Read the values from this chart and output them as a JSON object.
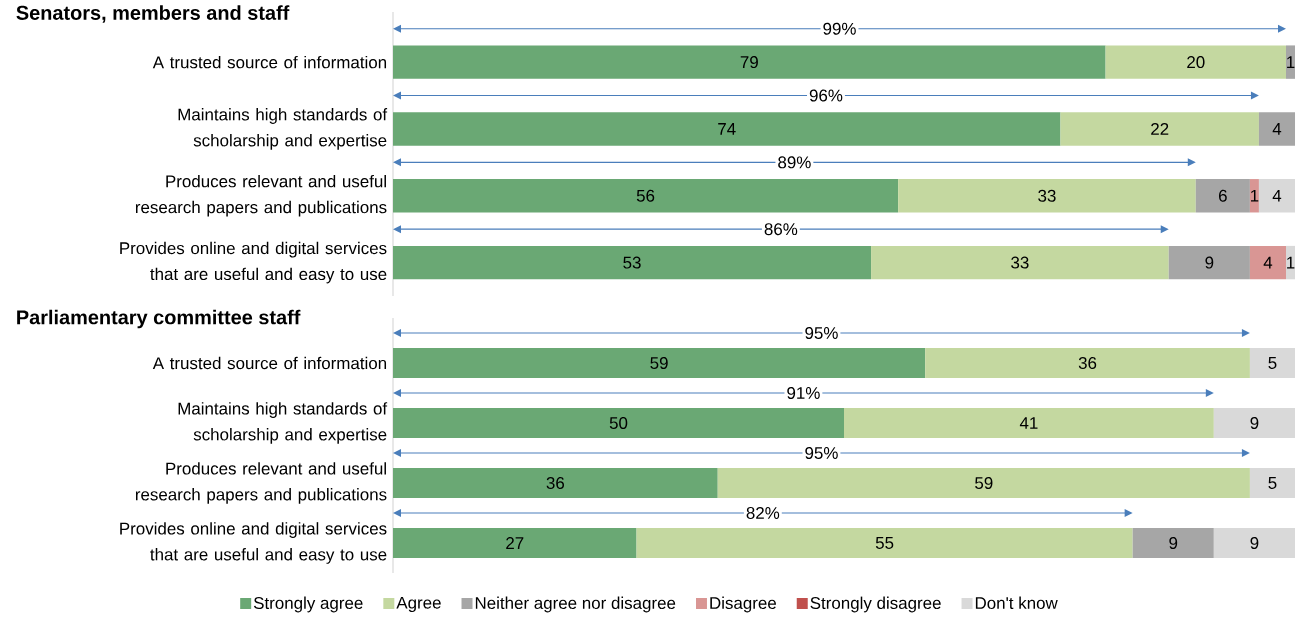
{
  "chart_data": [
    {
      "type": "bar",
      "orientation": "horizontal",
      "stacked": true,
      "data_labels": true,
      "legend": "bottom",
      "title": "Senators, members and staff",
      "categories": [
        "A trusted source of information",
        "Maintains high standards of scholarship and expertise",
        "Produces relevant and useful research papers and publications",
        "Provides online and digital services that are useful and easy to use"
      ],
      "series": [
        {
          "name": "Strongly agree",
          "color": "#6aa874",
          "values": [
            79,
            74,
            56,
            53
          ]
        },
        {
          "name": "Agree",
          "color": "#c4d8a0",
          "values": [
            20,
            22,
            33,
            33
          ]
        },
        {
          "name": "Neither agree nor disagree",
          "color": "#a6a6a6",
          "values": [
            1,
            4,
            6,
            9
          ]
        },
        {
          "name": "Disagree",
          "color": "#d99694",
          "values": [
            null,
            null,
            1,
            4
          ]
        },
        {
          "name": "Strongly disagree",
          "color": "#c0504d",
          "values": [
            null,
            null,
            null,
            null
          ]
        },
        {
          "name": "Don't know",
          "color": "#d9d9d9",
          "values": [
            null,
            null,
            4,
            1
          ]
        }
      ],
      "annotations": [
        "99%",
        "96%",
        "89%",
        "86%"
      ]
    },
    {
      "type": "bar",
      "orientation": "horizontal",
      "stacked": true,
      "data_labels": true,
      "title": "Parliamentary committee staff",
      "categories": [
        "A trusted source of information",
        "Maintains high standards of scholarship and expertise",
        "Produces relevant and useful research papers and publications",
        "Provides online and digital services that are useful and easy to use"
      ],
      "series": [
        {
          "color": "#6aa874",
          "values": [
            59,
            50,
            36,
            27
          ]
        },
        {
          "color": "#c4d8a0",
          "values": [
            36,
            41,
            59,
            55
          ]
        },
        {
          "color": "#a6a6a6",
          "values": [
            null,
            null,
            null,
            9
          ]
        },
        {
          "color": "#d99694",
          "values": [
            null,
            null,
            null,
            null
          ]
        },
        {
          "color": "#c0504d",
          "values": [
            null,
            null,
            null,
            null
          ]
        },
        {
          "color": "#d9d9d9",
          "values": [
            5,
            9,
            5,
            9
          ]
        }
      ],
      "annotations": [
        "95%",
        "91%",
        "95%",
        "82%"
      ]
    }
  ]
}
